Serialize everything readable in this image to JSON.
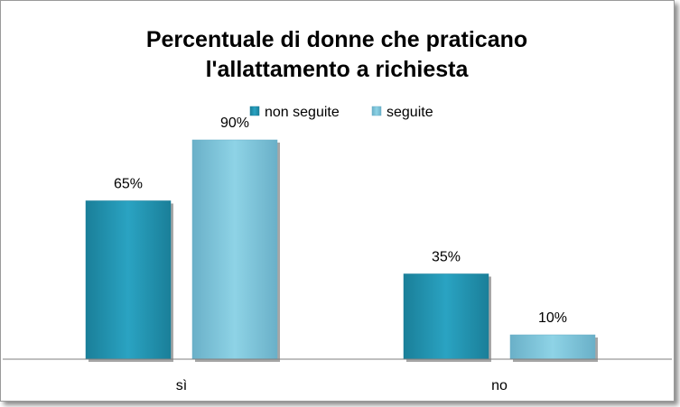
{
  "chart_data": {
    "type": "bar",
    "title_lines": [
      "Percentuale di donne che praticano",
      "l'allattamento a richiesta"
    ],
    "categories": [
      "sì",
      "no"
    ],
    "series": [
      {
        "name": "non seguite",
        "values": [
          65,
          35
        ],
        "labels": [
          "65%",
          "35%"
        ],
        "color": "#2aa3c2",
        "color_dark": "#1a7f99"
      },
      {
        "name": "seguite",
        "values": [
          90,
          10
        ],
        "labels": [
          "90%",
          "10%"
        ],
        "color": "#8ed3e6",
        "color_dark": "#6ab0c8"
      }
    ],
    "ylim": [
      0,
      100
    ],
    "grid": false,
    "legend_position": "top"
  }
}
